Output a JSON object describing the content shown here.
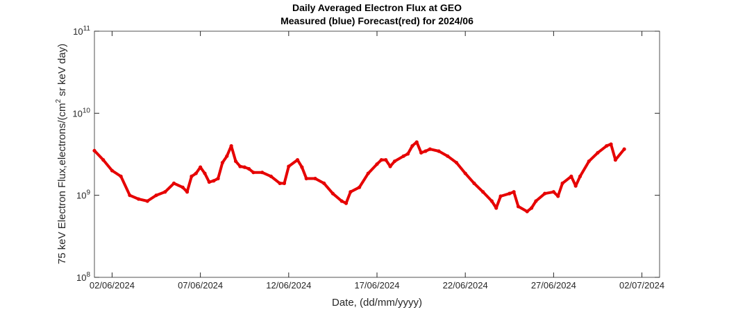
{
  "chart_data": {
    "type": "scatter",
    "title": "Daily Averaged Electron Flux at GEO",
    "subtitle": "Measured (blue) Forecast(red) for 2024/06",
    "x_label": "Date, (dd/mm/yyyy)",
    "y_label": "75 keV Electron Flux,electrons/(cm^2 sr keV day)",
    "color": "#e60000",
    "log_y": true,
    "x": [
      "2024-06-01T00:00",
      "2024-06-01T12:00",
      "2024-06-02T00:00",
      "2024-06-02T12:00",
      "2024-06-03T00:00",
      "2024-06-03T12:00",
      "2024-06-04T00:00",
      "2024-06-04T12:00",
      "2024-06-05T00:00",
      "2024-06-05T12:00",
      "2024-06-06T00:00",
      "2024-06-06T06:00",
      "2024-06-06T12:00",
      "2024-06-06T18:00",
      "2024-06-07T00:00",
      "2024-06-07T06:00",
      "2024-06-07T12:00",
      "2024-06-07T18:00",
      "2024-06-08T00:00",
      "2024-06-08T06:00",
      "2024-06-08T12:00",
      "2024-06-08T18:00",
      "2024-06-09T00:00",
      "2024-06-09T06:00",
      "2024-06-09T12:00",
      "2024-06-09T18:00",
      "2024-06-10T00:00",
      "2024-06-10T12:00",
      "2024-06-11T00:00",
      "2024-06-11T12:00",
      "2024-06-11T18:00",
      "2024-06-12T00:00",
      "2024-06-12T12:00",
      "2024-06-12T18:00",
      "2024-06-13T00:00",
      "2024-06-13T12:00",
      "2024-06-14T00:00",
      "2024-06-14T12:00",
      "2024-06-15T00:00",
      "2024-06-15T06:00",
      "2024-06-15T12:00",
      "2024-06-16T00:00",
      "2024-06-16T12:00",
      "2024-06-17T00:00",
      "2024-06-17T06:00",
      "2024-06-17T12:00",
      "2024-06-17T18:00",
      "2024-06-18T00:00",
      "2024-06-18T12:00",
      "2024-06-18T18:00",
      "2024-06-19T00:00",
      "2024-06-19T06:00",
      "2024-06-19T12:00",
      "2024-06-19T18:00",
      "2024-06-20T00:00",
      "2024-06-20T12:00",
      "2024-06-21T00:00",
      "2024-06-21T12:00",
      "2024-06-22T00:00",
      "2024-06-22T12:00",
      "2024-06-23T00:00",
      "2024-06-23T12:00",
      "2024-06-23T18:00",
      "2024-06-24T00:00",
      "2024-06-24T12:00",
      "2024-06-24T18:00",
      "2024-06-25T00:00",
      "2024-06-25T12:00",
      "2024-06-25T18:00",
      "2024-06-26T00:00",
      "2024-06-26T12:00",
      "2024-06-27T00:00",
      "2024-06-27T06:00",
      "2024-06-27T12:00",
      "2024-06-28T00:00",
      "2024-06-28T06:00",
      "2024-06-28T12:00",
      "2024-06-29T00:00",
      "2024-06-29T12:00",
      "2024-06-30T00:00",
      "2024-06-30T06:00",
      "2024-06-30T12:00",
      "2024-07-01T00:00"
    ],
    "values": [
      3500000000,
      2700000000,
      2000000000,
      1700000000,
      1000000000,
      900000000,
      850000000,
      1000000000,
      1100000000,
      1400000000,
      1250000000,
      1100000000,
      1700000000,
      1850000000,
      2200000000,
      1850000000,
      1450000000,
      1500000000,
      1600000000,
      2500000000,
      3000000000,
      4000000000,
      2600000000,
      2250000000,
      2200000000,
      2100000000,
      1900000000,
      1900000000,
      1700000000,
      1400000000,
      1400000000,
      2250000000,
      2700000000,
      2200000000,
      1600000000,
      1600000000,
      1400000000,
      1050000000,
      850000000,
      800000000,
      1100000000,
      1250000000,
      1850000000,
      2400000000,
      2700000000,
      2700000000,
      2250000000,
      2600000000,
      3000000000,
      3200000000,
      4000000000,
      4450000000,
      3300000000,
      3450000000,
      3650000000,
      3450000000,
      3000000000,
      2500000000,
      1850000000,
      1400000000,
      1100000000,
      850000000,
      700000000,
      975000000,
      1050000000,
      1100000000,
      730000000,
      635000000,
      700000000,
      850000000,
      1050000000,
      1100000000,
      975000000,
      1400000000,
      1700000000,
      1300000000,
      1700000000,
      2600000000,
      3300000000,
      4000000000,
      4200000000,
      2700000000,
      3650000000
    ],
    "xlim": [
      "2024-06-01",
      "2024-07-03"
    ],
    "xticks": [
      {
        "value": "2024-06-02",
        "label": "02/06/2024"
      },
      {
        "value": "2024-06-07",
        "label": "07/06/2024"
      },
      {
        "value": "2024-06-12",
        "label": "12/06/2024"
      },
      {
        "value": "2024-06-17",
        "label": "17/06/2024"
      },
      {
        "value": "2024-06-22",
        "label": "22/06/2024"
      },
      {
        "value": "2024-06-27",
        "label": "27/06/2024"
      },
      {
        "value": "2024-07-02",
        "label": "02/07/2024"
      }
    ],
    "ylim": [
      100000000,
      100000000000
    ],
    "yticks": [
      {
        "value": 100000000,
        "label": "10^8"
      },
      {
        "value": 1000000000,
        "label": "10^9"
      },
      {
        "value": 10000000000,
        "label": "10^10"
      },
      {
        "value": 100000000000,
        "label": "10^11"
      }
    ]
  }
}
